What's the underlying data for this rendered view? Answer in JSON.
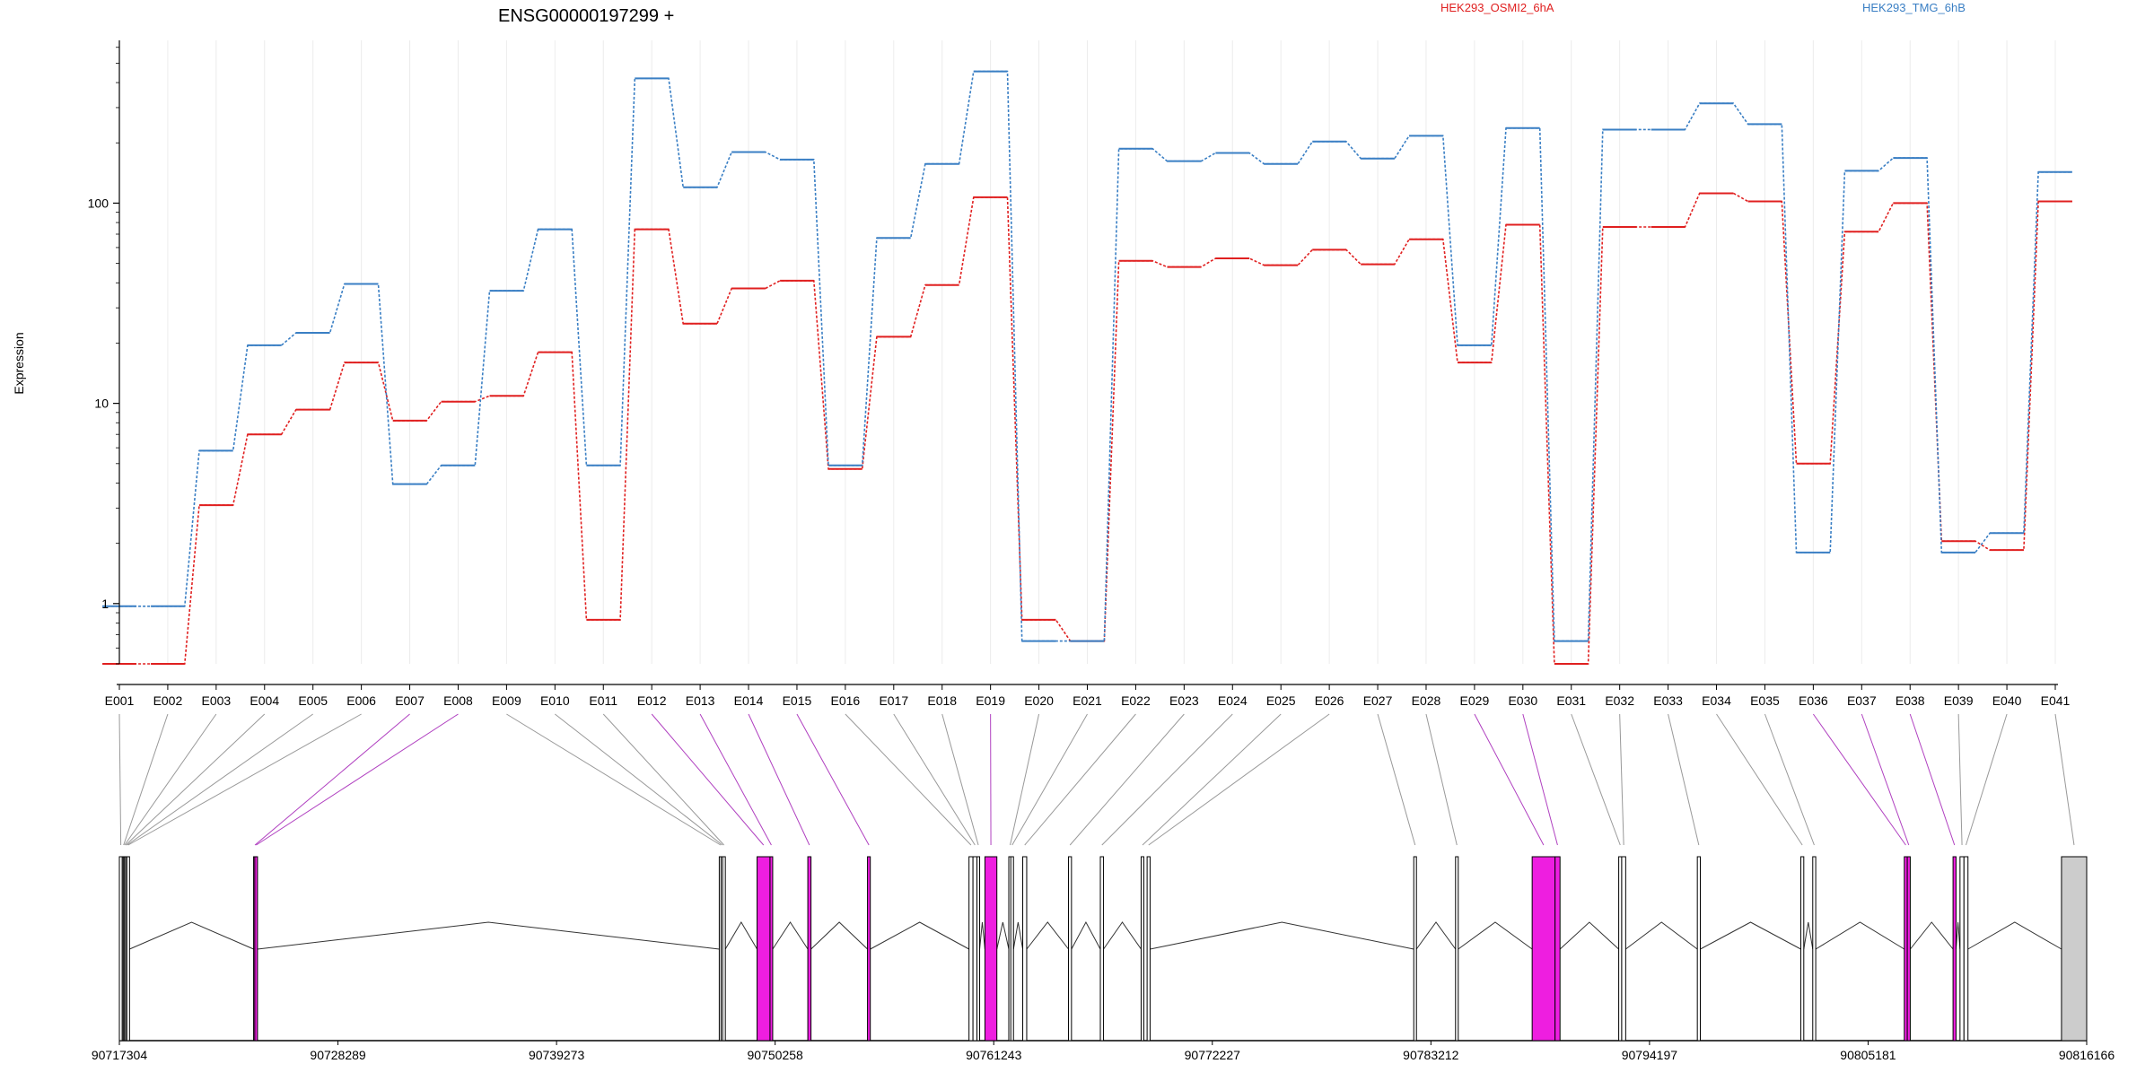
{
  "chart_data": {
    "type": "line",
    "title": "ENSG00000197299 +",
    "ylabel": "Expression",
    "xlabel": "",
    "yscale": "log",
    "ylim": [
      0.5,
      650
    ],
    "yticks": [
      1,
      10,
      100
    ],
    "ytick_labels": [
      "1",
      "10",
      "100"
    ],
    "grid": "vertical, light",
    "legend_placement": "top, inline",
    "categories": [
      "E001",
      "E002",
      "E003",
      "E004",
      "E005",
      "E006",
      "E007",
      "E008",
      "E009",
      "E010",
      "E011",
      "E012",
      "E013",
      "E014",
      "E015",
      "E016",
      "E017",
      "E018",
      "E019",
      "E020",
      "E021",
      "E022",
      "E023",
      "E024",
      "E025",
      "E026",
      "E027",
      "E028",
      "E029",
      "E030",
      "E031",
      "E032",
      "E033",
      "E034",
      "E035",
      "E036",
      "E037",
      "E038",
      "E039",
      "E040",
      "E041"
    ],
    "series": [
      {
        "name": "HEK293_OSMI2_6hA",
        "color": "#e02020",
        "values": [
          0.5,
          0.5,
          3.1,
          7.0,
          9.3,
          16.0,
          8.2,
          10.2,
          10.9,
          18.0,
          0.83,
          74,
          25,
          37.5,
          41,
          4.7,
          21.5,
          39,
          107,
          0.83,
          0.65,
          51.5,
          48,
          53,
          49,
          58.5,
          49.5,
          66,
          16,
          78,
          0.5,
          76,
          76,
          112,
          102,
          5.0,
          72,
          100,
          2.05,
          1.85,
          102
        ]
      },
      {
        "name": "HEK293_TMG_6hB",
        "color": "#3a7fc4",
        "values": [
          0.97,
          0.97,
          5.8,
          19.5,
          22.5,
          39.5,
          3.95,
          4.9,
          36.5,
          74,
          4.9,
          420,
          120,
          180,
          165,
          4.9,
          67,
          157,
          455,
          0.65,
          0.65,
          187,
          162,
          178,
          157,
          203,
          167,
          217,
          19.5,
          237,
          0.65,
          233,
          233,
          315,
          248,
          1.8,
          145,
          168,
          1.8,
          2.25,
          143
        ]
      }
    ]
  },
  "gene_model": {
    "coordinate_labels": [
      "90717304",
      "90728289",
      "90739273",
      "90750258",
      "90761243",
      "90772227",
      "90783212",
      "90794197",
      "90805181",
      "90816166"
    ],
    "exon_colors": {
      "default": "#ffffff",
      "highlight": "#ee1ee0",
      "utr": "#cccccc"
    },
    "exons": [
      {
        "id": "E001",
        "start": 90717304,
        "end": 90717450,
        "highlight": false
      },
      {
        "id": "E002",
        "start": 90717450,
        "end": 90717500,
        "highlight": false
      },
      {
        "id": "E003",
        "start": 90717500,
        "end": 90717560,
        "highlight": false
      },
      {
        "id": "E004",
        "start": 90717560,
        "end": 90717620,
        "highlight": false
      },
      {
        "id": "E005",
        "start": 90717620,
        "end": 90717680,
        "highlight": false
      },
      {
        "id": "E006",
        "start": 90717680,
        "end": 90717740,
        "highlight": false
      },
      {
        "id": "E007",
        "start": 90724050,
        "end": 90724110,
        "highlight": true
      },
      {
        "id": "E008",
        "start": 90724110,
        "end": 90724170,
        "highlight": true
      },
      {
        "id": "E009",
        "start": 90747450,
        "end": 90747540,
        "highlight": false
      },
      {
        "id": "E010",
        "start": 90747540,
        "end": 90747620,
        "highlight": false
      },
      {
        "id": "E011",
        "start": 90747620,
        "end": 90747700,
        "highlight": false
      },
      {
        "id": "E012",
        "start": 90749350,
        "end": 90750000,
        "highlight": true
      },
      {
        "id": "E013",
        "start": 90750000,
        "end": 90750120,
        "highlight": true
      },
      {
        "id": "E014",
        "start": 90751900,
        "end": 90752060,
        "highlight": true
      },
      {
        "id": "E015",
        "start": 90754900,
        "end": 90755040,
        "highlight": true
      },
      {
        "id": "E016",
        "start": 90760000,
        "end": 90760200,
        "highlight": false
      },
      {
        "id": "E017",
        "start": 90760200,
        "end": 90760400,
        "highlight": false
      },
      {
        "id": "E018",
        "start": 90760400,
        "end": 90760500,
        "highlight": false
      },
      {
        "id": "E019",
        "start": 90760800,
        "end": 90761400,
        "highlight": true
      },
      {
        "id": "E020",
        "start": 90762000,
        "end": 90762100,
        "highlight": false
      },
      {
        "id": "E021",
        "start": 90762100,
        "end": 90762200,
        "highlight": false
      },
      {
        "id": "E022",
        "start": 90762700,
        "end": 90762900,
        "highlight": false
      },
      {
        "id": "E023",
        "start": 90765000,
        "end": 90765150,
        "highlight": false
      },
      {
        "id": "E024",
        "start": 90766600,
        "end": 90766760,
        "highlight": false
      },
      {
        "id": "E025",
        "start": 90768650,
        "end": 90768780,
        "highlight": false
      },
      {
        "id": "E026",
        "start": 90768950,
        "end": 90769100,
        "highlight": false
      },
      {
        "id": "E027",
        "start": 90782350,
        "end": 90782450,
        "highlight": false
      },
      {
        "id": "E028",
        "start": 90784450,
        "end": 90784550,
        "highlight": false
      },
      {
        "id": "E029",
        "start": 90788300,
        "end": 90789450,
        "highlight": true
      },
      {
        "id": "E030",
        "start": 90789450,
        "end": 90789700,
        "highlight": true
      },
      {
        "id": "E031",
        "start": 90792650,
        "end": 90792800,
        "highlight": false
      },
      {
        "id": "E032",
        "start": 90792800,
        "end": 90793000,
        "highlight": false
      },
      {
        "id": "E033",
        "start": 90796600,
        "end": 90796750,
        "highlight": false
      },
      {
        "id": "E034",
        "start": 90801800,
        "end": 90801950,
        "highlight": false
      },
      {
        "id": "E035",
        "start": 90802400,
        "end": 90802550,
        "highlight": false
      },
      {
        "id": "E036",
        "start": 90807000,
        "end": 90807150,
        "highlight": true
      },
      {
        "id": "E037",
        "start": 90807150,
        "end": 90807300,
        "highlight": true
      },
      {
        "id": "E038",
        "start": 90809450,
        "end": 90809600,
        "highlight": true
      },
      {
        "id": "E039",
        "start": 90809800,
        "end": 90810000,
        "highlight": false
      },
      {
        "id": "E040",
        "start": 90810000,
        "end": 90810200,
        "highlight": false
      },
      {
        "id": "E041",
        "start": 90814900,
        "end": 90816166,
        "highlight": false,
        "utr": true
      }
    ]
  }
}
